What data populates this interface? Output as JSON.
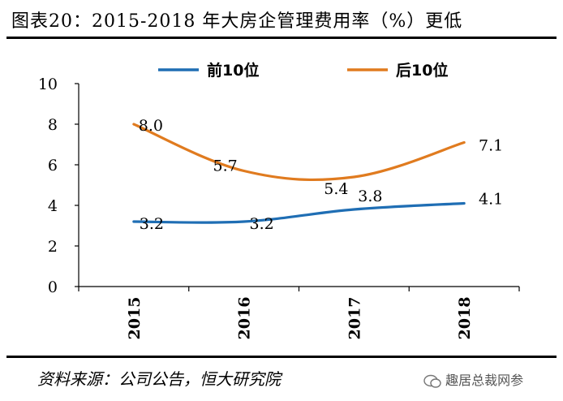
{
  "title": "图表20：2015-2018 年大房企管理费用率（%）更低",
  "source": "资料来源：公司公告，恒大研究院",
  "watermark": "趣居总裁网参",
  "chart_data": {
    "type": "line",
    "categories": [
      "2015",
      "2016",
      "2017",
      "2018"
    ],
    "ylim": [
      0,
      10
    ],
    "yticks": [
      0,
      2,
      4,
      6,
      8,
      10
    ],
    "series": [
      {
        "name": "前10位",
        "color": "#1f6eb4",
        "values": [
          3.2,
          3.2,
          3.8,
          4.1
        ],
        "labels": [
          "3.2",
          "3.2",
          "3.8",
          "4.1"
        ]
      },
      {
        "name": "后10位",
        "color": "#e07b1f",
        "values": [
          8.0,
          5.7,
          5.4,
          7.1
        ],
        "labels": [
          "8.0",
          "5.7",
          "5.4",
          "7.1"
        ]
      }
    ],
    "legend": "top",
    "xlabel": "",
    "ylabel": ""
  }
}
